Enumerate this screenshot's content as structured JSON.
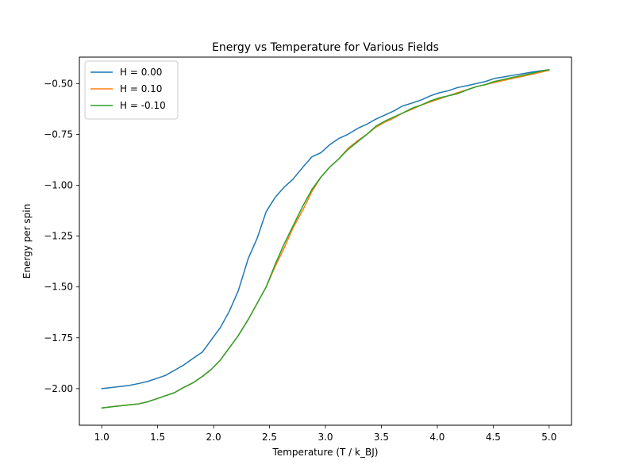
{
  "chart_data": {
    "type": "line",
    "title": "Energy vs Temperature for Various Fields",
    "xlabel": "Temperature (T / k_BJ)",
    "ylabel": "Energy per spin",
    "xlim": [
      0.8,
      5.2
    ],
    "ylim": [
      -2.18,
      -0.37
    ],
    "xticks": [
      1.0,
      1.5,
      2.0,
      2.5,
      3.0,
      3.5,
      4.0,
      4.5,
      5.0
    ],
    "xtick_labels": [
      "1.0",
      "1.5",
      "2.0",
      "2.5",
      "3.0",
      "3.5",
      "4.0",
      "4.5",
      "5.0"
    ],
    "yticks": [
      -2.0,
      -1.75,
      -1.5,
      -1.25,
      -1.0,
      -0.75,
      -0.5
    ],
    "ytick_labels": [
      "−2.00",
      "−1.75",
      "−1.50",
      "−1.25",
      "−1.00",
      "−0.75",
      "−0.50"
    ],
    "grid": false,
    "legend_position": "top-left",
    "x": [
      1.0,
      1.08,
      1.16,
      1.24,
      1.33,
      1.41,
      1.49,
      1.57,
      1.65,
      1.73,
      1.82,
      1.9,
      1.98,
      2.06,
      2.14,
      2.22,
      2.31,
      2.39,
      2.47,
      2.55,
      2.63,
      2.71,
      2.8,
      2.88,
      2.96,
      3.04,
      3.12,
      3.2,
      3.29,
      3.37,
      3.45,
      3.53,
      3.61,
      3.69,
      3.78,
      3.86,
      3.94,
      4.02,
      4.1,
      4.18,
      4.27,
      4.35,
      4.43,
      4.51,
      4.59,
      4.67,
      4.76,
      4.84,
      4.92,
      5.0
    ],
    "series": [
      {
        "name": "H = 0.00",
        "color": "#1f77b4",
        "values": [
          -2.0,
          -1.995,
          -1.99,
          -1.985,
          -1.975,
          -1.965,
          -1.95,
          -1.935,
          -1.91,
          -1.885,
          -1.85,
          -1.82,
          -1.76,
          -1.7,
          -1.62,
          -1.52,
          -1.36,
          -1.26,
          -1.13,
          -1.06,
          -1.01,
          -0.97,
          -0.91,
          -0.86,
          -0.84,
          -0.8,
          -0.77,
          -0.75,
          -0.72,
          -0.7,
          -0.675,
          -0.655,
          -0.635,
          -0.61,
          -0.595,
          -0.58,
          -0.56,
          -0.545,
          -0.535,
          -0.52,
          -0.51,
          -0.5,
          -0.49,
          -0.475,
          -0.468,
          -0.46,
          -0.452,
          -0.444,
          -0.438,
          -0.432
        ]
      },
      {
        "name": "H = 0.10",
        "color": "#ff7f0e",
        "values": [
          -2.095,
          -2.09,
          -2.085,
          -2.08,
          -2.075,
          -2.065,
          -2.05,
          -2.035,
          -2.02,
          -1.995,
          -1.97,
          -1.94,
          -1.905,
          -1.86,
          -1.8,
          -1.74,
          -1.66,
          -1.58,
          -1.5,
          -1.4,
          -1.31,
          -1.21,
          -1.12,
          -1.03,
          -0.96,
          -0.91,
          -0.87,
          -0.82,
          -0.78,
          -0.75,
          -0.715,
          -0.69,
          -0.67,
          -0.645,
          -0.625,
          -0.605,
          -0.59,
          -0.575,
          -0.56,
          -0.545,
          -0.53,
          -0.515,
          -0.505,
          -0.495,
          -0.485,
          -0.475,
          -0.465,
          -0.455,
          -0.445,
          -0.435
        ]
      },
      {
        "name": "H = -0.10",
        "color": "#2ca02c",
        "values": [
          -2.095,
          -2.09,
          -2.085,
          -2.08,
          -2.075,
          -2.065,
          -2.05,
          -2.035,
          -2.02,
          -1.995,
          -1.97,
          -1.94,
          -1.905,
          -1.86,
          -1.8,
          -1.74,
          -1.66,
          -1.58,
          -1.5,
          -1.39,
          -1.29,
          -1.2,
          -1.1,
          -1.02,
          -0.96,
          -0.91,
          -0.87,
          -0.825,
          -0.785,
          -0.75,
          -0.71,
          -0.685,
          -0.665,
          -0.645,
          -0.62,
          -0.605,
          -0.585,
          -0.57,
          -0.56,
          -0.55,
          -0.53,
          -0.515,
          -0.505,
          -0.49,
          -0.48,
          -0.47,
          -0.46,
          -0.45,
          -0.44,
          -0.432
        ]
      }
    ]
  }
}
